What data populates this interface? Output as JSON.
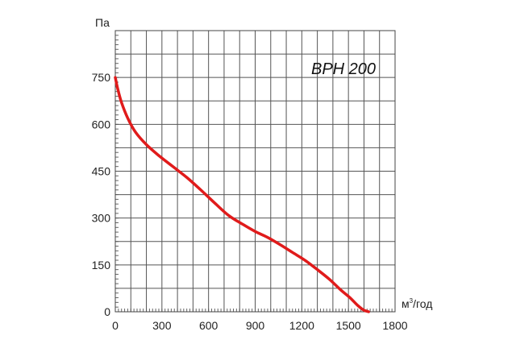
{
  "chart_data": {
    "type": "line",
    "model_label": "BPH 200",
    "y_unit": "Па",
    "x_unit_base": "м",
    "x_unit_sup": "3",
    "x_unit_tail": "/год",
    "xlim": [
      0,
      1800
    ],
    "ylim": [
      0,
      900
    ],
    "x_ticks": [
      "0",
      "300",
      "600",
      "900",
      "1200",
      "1500",
      "1800"
    ],
    "y_ticks": [
      "0",
      "150",
      "300",
      "450",
      "600",
      "750"
    ],
    "grid": true,
    "series": [
      {
        "color": "#e01b1b",
        "x": [
          0,
          15,
          40,
          80,
          130,
          200,
          280,
          370,
          460,
          550,
          640,
          730,
          820,
          900,
          980,
          1060,
          1140,
          1220,
          1300,
          1380,
          1450,
          1510,
          1560,
          1600,
          1630
        ],
        "y": [
          750,
          715,
          670,
          620,
          575,
          535,
          500,
          465,
          430,
          390,
          348,
          308,
          280,
          257,
          238,
          215,
          190,
          165,
          135,
          103,
          70,
          45,
          20,
          5,
          0
        ]
      }
    ]
  }
}
